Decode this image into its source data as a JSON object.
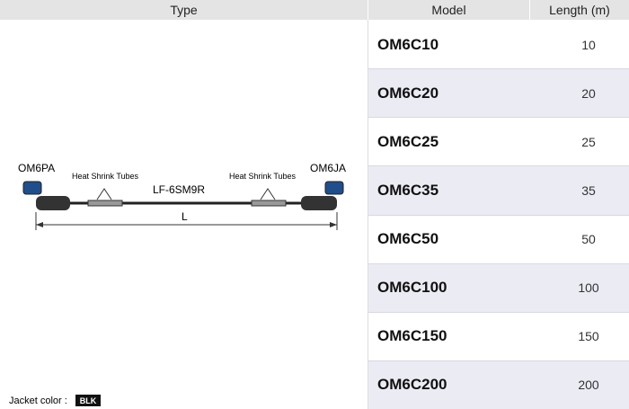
{
  "header": {
    "type": "Type",
    "model": "Model",
    "length": "Length (m)"
  },
  "table": {
    "rows": [
      [
        "OM6C10",
        10
      ],
      [
        "OM6C20",
        20
      ],
      [
        "OM6C25",
        25
      ],
      [
        "OM6C35",
        35
      ],
      [
        "OM6C50",
        50
      ],
      [
        "OM6C100",
        100
      ],
      [
        "OM6C150",
        150
      ],
      [
        "OM6C200",
        200
      ]
    ]
  },
  "diagram": {
    "left_connector": "OM6PA",
    "right_connector": "OM6JA",
    "tube_left": "Heat Shrink Tubes",
    "tube_right": "Heat Shrink Tubes",
    "cable": "LF-6SM9R",
    "length": "L"
  },
  "jacket": {
    "label": "Jacket color :",
    "color": "BLK"
  }
}
